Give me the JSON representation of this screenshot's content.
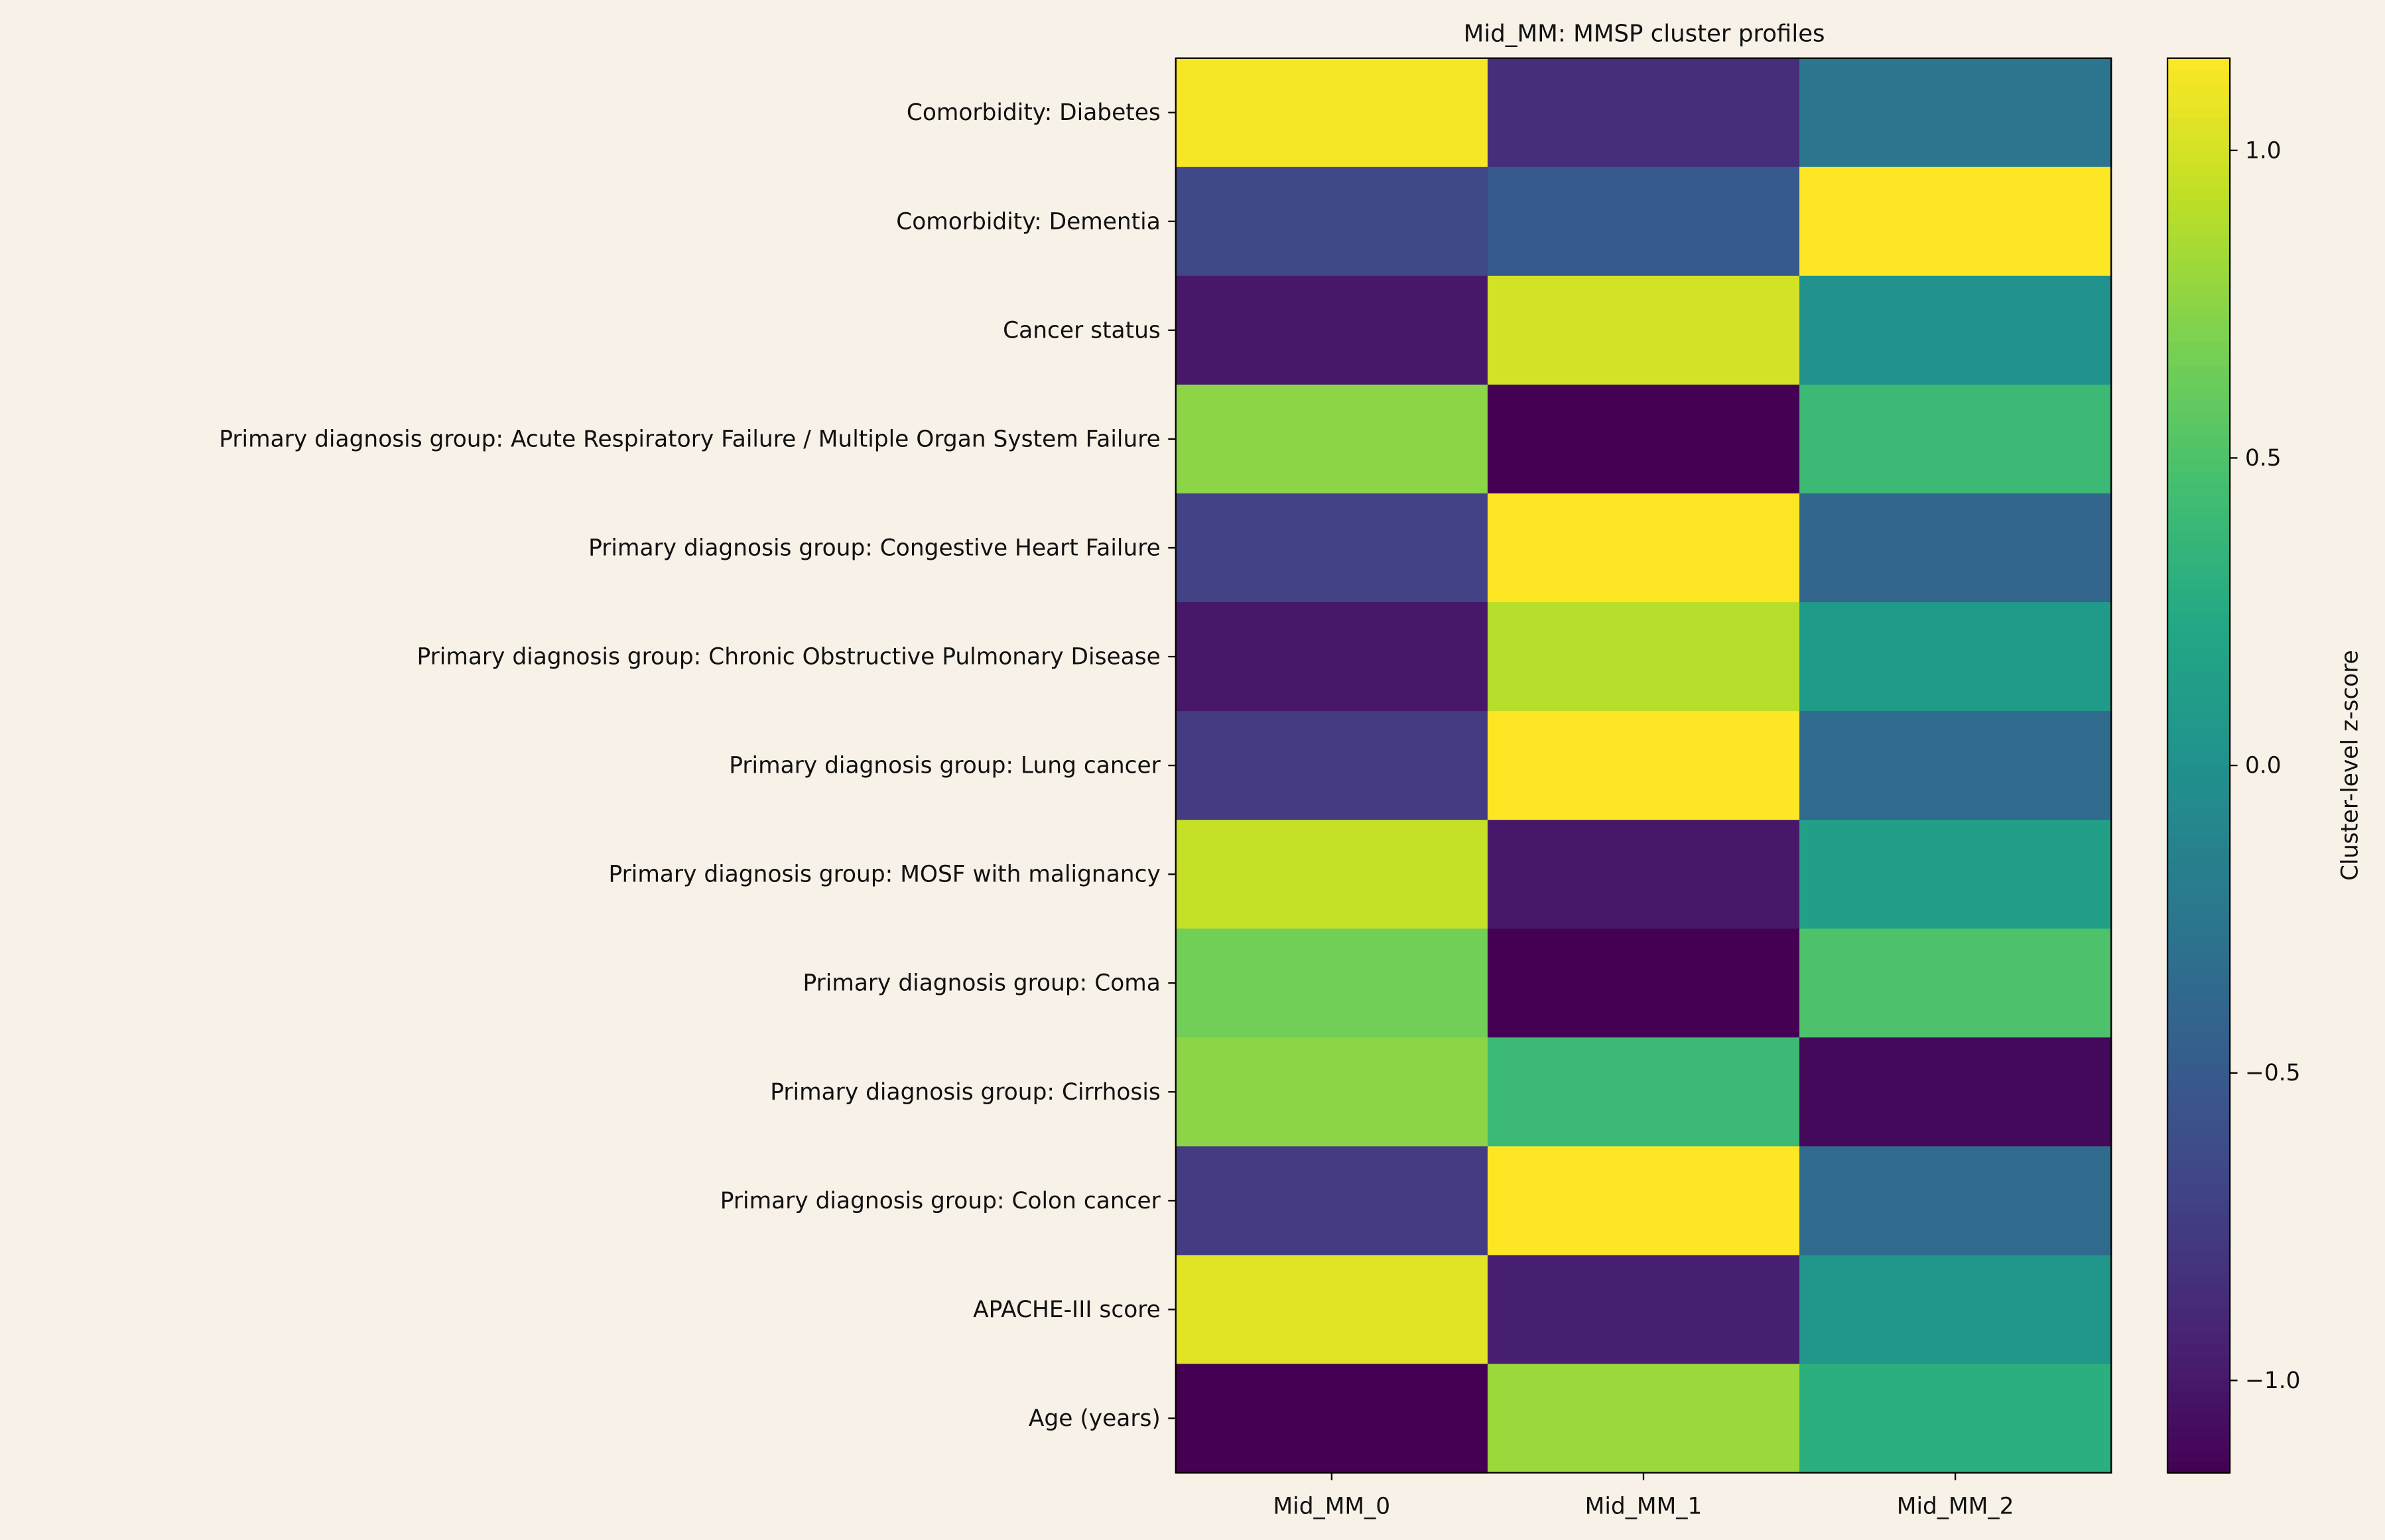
{
  "chart_data": {
    "type": "heatmap",
    "title": "Mid_MM: MMSP cluster profiles",
    "columns": [
      "Mid_MM_0",
      "Mid_MM_1",
      "Mid_MM_2"
    ],
    "rows": [
      "Comorbidity: Diabetes",
      "Comorbidity: Dementia",
      "Cancer status",
      "Primary diagnosis group: Acute Respiratory Failure / Multiple Organ System Failure",
      "Primary diagnosis group: Congestive Heart Failure",
      "Primary diagnosis group: Chronic Obstructive Pulmonary Disease",
      "Primary diagnosis group: Lung cancer",
      "Primary diagnosis group: MOSF with malignancy",
      "Primary diagnosis group: Coma",
      "Primary diagnosis group: Cirrhosis",
      "Primary diagnosis group: Colon cancer",
      "APACHE-III score",
      "Age (years)"
    ],
    "values": [
      [
        1.13,
        -0.85,
        -0.25
      ],
      [
        -0.65,
        -0.5,
        1.15
      ],
      [
        -1.0,
        1.0,
        0.0
      ],
      [
        0.75,
        -1.15,
        0.4
      ],
      [
        -0.7,
        1.15,
        -0.4
      ],
      [
        -1.0,
        0.9,
        0.1
      ],
      [
        -0.75,
        1.15,
        -0.35
      ],
      [
        0.95,
        -1.0,
        0.15
      ],
      [
        0.65,
        -1.15,
        0.5
      ],
      [
        0.75,
        0.4,
        -1.1
      ],
      [
        -0.75,
        1.15,
        -0.35
      ],
      [
        1.05,
        -0.95,
        0.05
      ],
      [
        -1.15,
        0.8,
        0.3
      ]
    ],
    "colormap": "viridis",
    "colorbar": {
      "label": "Cluster-level z-score",
      "range": [
        -1.15,
        1.15
      ],
      "ticks": [
        -1.0,
        -0.5,
        0.0,
        0.5,
        1.0
      ],
      "tick_labels": [
        "−1.0",
        "−0.5",
        "0.0",
        "0.5",
        "1.0"
      ]
    },
    "background": "#f8f1e7"
  }
}
